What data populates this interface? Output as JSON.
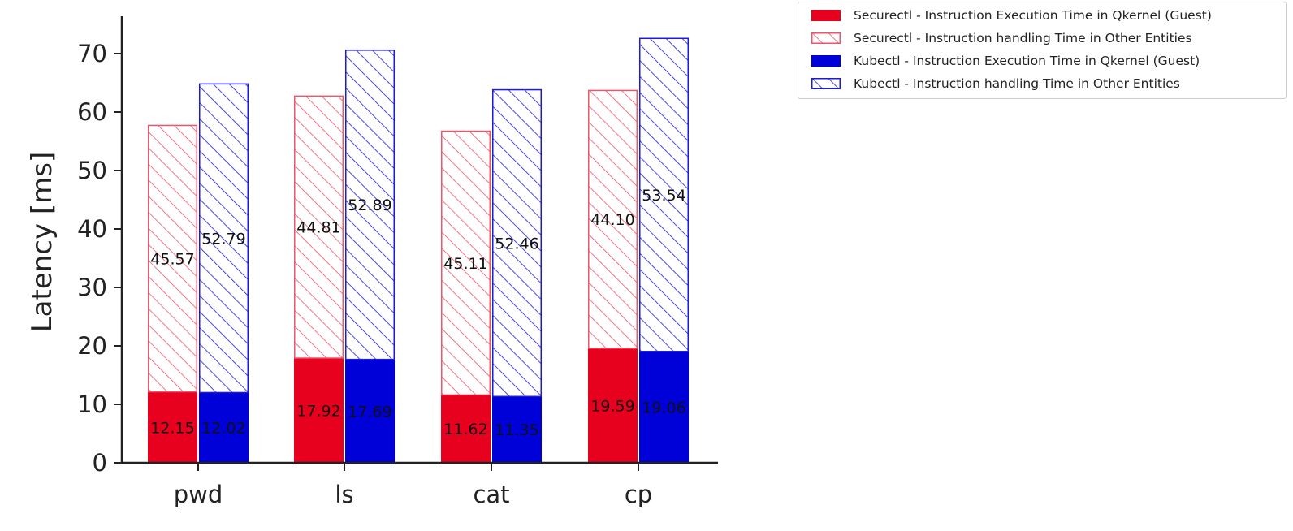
{
  "chart_data": {
    "type": "bar",
    "categories": [
      "pwd",
      "ls",
      "cat",
      "cp"
    ],
    "ylabel": "Latency [ms]",
    "ylim": [
      0,
      76
    ],
    "yticks": [
      0,
      10,
      20,
      30,
      40,
      50,
      60,
      70
    ],
    "series": [
      {
        "name": "Securectl - Instruction Execution Time in Qkernel (Guest)",
        "group": "Securectl",
        "style": "solid",
        "color": "#e8001f",
        "values": [
          12.15,
          17.92,
          11.62,
          19.59
        ],
        "labels": [
          "12.15",
          "17.92",
          "11.62",
          "19.59"
        ]
      },
      {
        "name": "Securectl - Instruction handling Time in Other Entities",
        "group": "Securectl",
        "style": "hatched",
        "color": "#f0546a",
        "values": [
          45.57,
          44.81,
          45.11,
          44.1
        ],
        "labels": [
          "45.57",
          "44.81",
          "45.11",
          "44.10"
        ]
      },
      {
        "name": "Kubectl - Instruction Execution Time in Qkernel (Guest)",
        "group": "Kubectl",
        "style": "solid",
        "color": "#0000d8",
        "values": [
          12.02,
          17.69,
          11.35,
          19.06
        ],
        "labels": [
          "12.02",
          "17.69",
          "11.35",
          "19.06"
        ]
      },
      {
        "name": "Kubectl - Instruction handling Time in Other Entities",
        "group": "Kubectl",
        "style": "hatched",
        "color": "#1a1ae0",
        "values": [
          52.79,
          52.89,
          52.46,
          53.54
        ],
        "labels": [
          "52.79",
          "52.89",
          "52.46",
          "53.54"
        ]
      }
    ],
    "legend_position": "top-right, outside plot",
    "grid": false
  }
}
